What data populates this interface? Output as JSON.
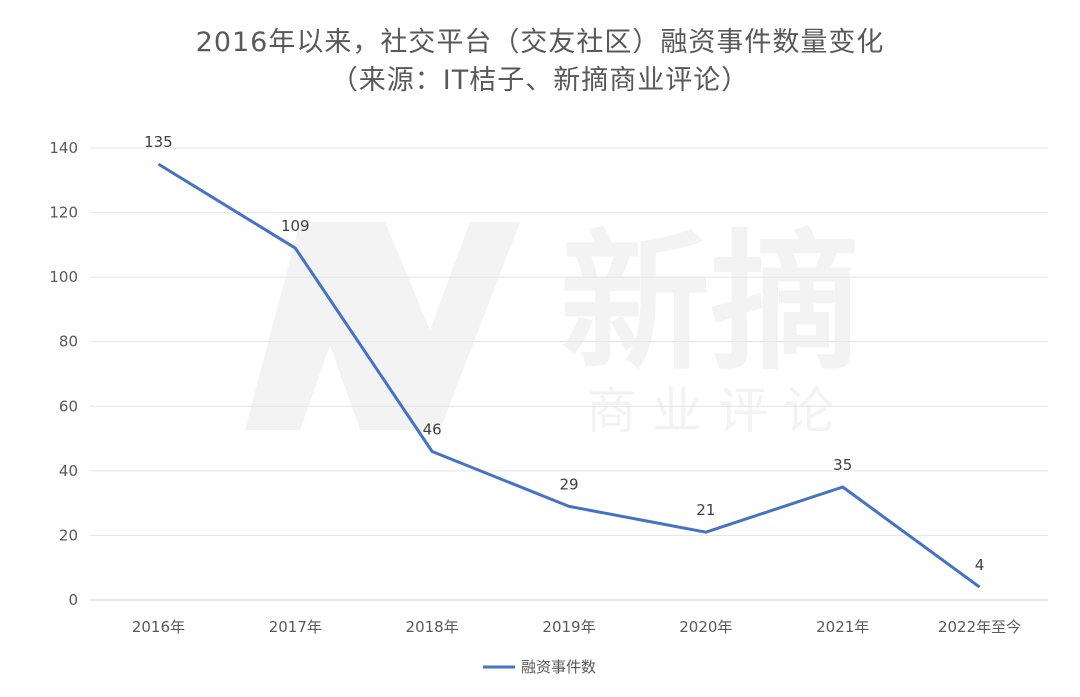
{
  "chart_data": {
    "type": "line",
    "title": "2016年以来，社交平台（交友社区）融资事件数量变化",
    "subtitle": "（来源：IT桔子、新摘商业评论）",
    "categories": [
      "2016年",
      "2017年",
      "2018年",
      "2019年",
      "2020年",
      "2021年",
      "2022年至今"
    ],
    "series": [
      {
        "name": "融资事件数",
        "values": [
          135,
          109,
          46,
          29,
          21,
          35,
          4
        ],
        "color": "#4472c4"
      }
    ],
    "ylim": [
      0,
      140
    ],
    "yticks": [
      0,
      20,
      40,
      60,
      80,
      100,
      120,
      140
    ],
    "grid": true,
    "legend": "bottom-center",
    "watermark": {
      "logo_text": "新摘",
      "subtext": "商 业 评 论"
    }
  }
}
